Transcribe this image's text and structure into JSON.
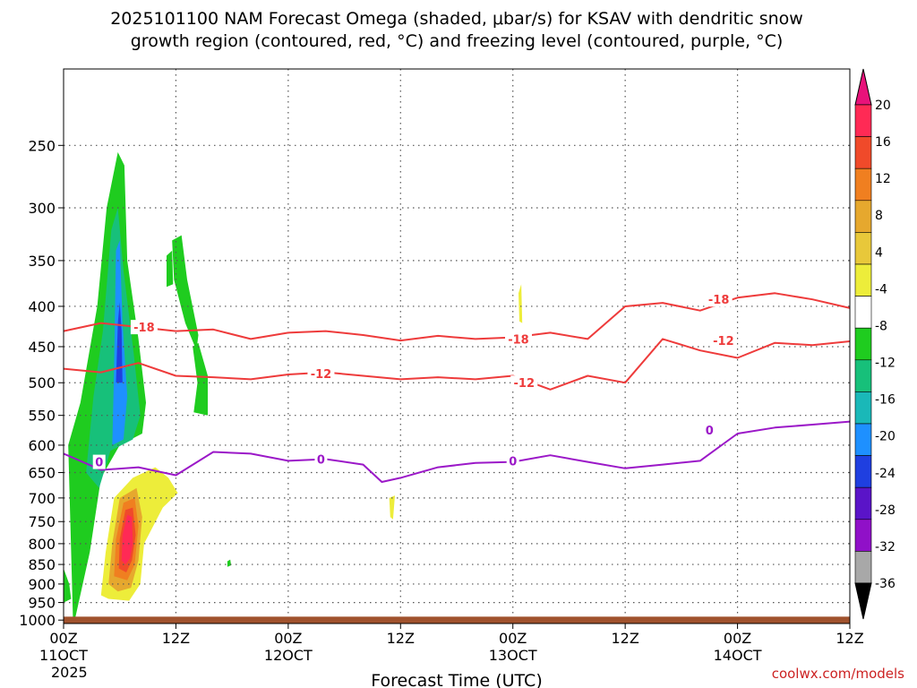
{
  "chart_data": {
    "type": "heatmap",
    "title_lines": [
      "2025101100 NAM Forecast Omega (shaded, μbar/s) for KSAV with dendritic snow",
      "growth region (contoured, red, °C) and freezing level (contoured, purple, °C)"
    ],
    "xlabel": "Forecast Time (UTC)",
    "ylabel": "",
    "x_ticks": [
      {
        "hour": 0,
        "l1": "00Z",
        "l2": "11OCT",
        "l3": "2025"
      },
      {
        "hour": 12,
        "l1": "12Z",
        "l2": "",
        "l3": ""
      },
      {
        "hour": 24,
        "l1": "00Z",
        "l2": "12OCT",
        "l3": ""
      },
      {
        "hour": 36,
        "l1": "12Z",
        "l2": "",
        "l3": ""
      },
      {
        "hour": 48,
        "l1": "00Z",
        "l2": "13OCT",
        "l3": ""
      },
      {
        "hour": 60,
        "l1": "12Z",
        "l2": "",
        "l3": ""
      },
      {
        "hour": 72,
        "l1": "00Z",
        "l2": "14OCT",
        "l3": ""
      },
      {
        "hour": 84,
        "l1": "12Z",
        "l2": "",
        "l3": ""
      }
    ],
    "xlim_hours": [
      0,
      84
    ],
    "y_ticks": [
      250,
      300,
      350,
      400,
      450,
      500,
      550,
      600,
      650,
      700,
      750,
      800,
      850,
      900,
      950,
      1000
    ],
    "ylim_hpa": [
      200,
      1010
    ],
    "y_log": true,
    "grid": true,
    "colorbar": {
      "labels": [
        "20",
        "16",
        "12",
        "8",
        "4",
        "-4",
        "-8",
        "-12",
        "-16",
        "-20",
        "-24",
        "-28",
        "-32",
        "-36"
      ],
      "colors": [
        "#ff2a55",
        "#f04a2a",
        "#f07f20",
        "#e6a82e",
        "#e8c83a",
        "#eded3a",
        "#ffffff",
        "#1fcc1f",
        "#17c07a",
        "#1ab8b8",
        "#1e90ff",
        "#1f3fe0",
        "#5a14c8",
        "#9010c8",
        "#a8a8a8"
      ],
      "top_arrow_color": "#e8127a",
      "bottom_arrow_color": "#000000"
    },
    "contours": [
      {
        "name": "-18",
        "color": "#ee3b3b",
        "x": [
          0,
          4,
          8,
          12,
          16,
          20,
          24,
          28,
          32,
          36,
          40,
          44,
          48,
          52,
          56,
          60,
          64,
          68,
          72,
          76,
          80,
          84
        ],
        "y": [
          430,
          420,
          425,
          430,
          428,
          440,
          432,
          430,
          435,
          442,
          436,
          440,
          438,
          432,
          440,
          400,
          396,
          405,
          390,
          385,
          392,
          402
        ],
        "labels": [
          {
            "x": 8.6,
            "y": 425
          },
          {
            "x": 48.6,
            "y": 440
          },
          {
            "x": 70,
            "y": 392
          }
        ]
      },
      {
        "name": "-12",
        "color": "#ee3b3b",
        "x": [
          0,
          4,
          8,
          12,
          16,
          20,
          24,
          28,
          32,
          36,
          40,
          44,
          48,
          52,
          56,
          60,
          64,
          68,
          72,
          76,
          80,
          84
        ],
        "y": [
          480,
          485,
          472,
          490,
          492,
          495,
          488,
          485,
          490,
          495,
          492,
          495,
          490,
          510,
          490,
          500,
          440,
          455,
          465,
          445,
          448,
          443
        ],
        "labels": [
          {
            "x": 27.5,
            "y": 487
          },
          {
            "x": 49.2,
            "y": 500
          },
          {
            "x": 70.5,
            "y": 442
          }
        ]
      },
      {
        "name": "0",
        "color": "#9b18c8",
        "x": [
          0,
          4,
          8,
          12,
          16,
          20,
          24,
          28,
          32,
          34,
          36,
          40,
          44,
          48,
          52,
          56,
          60,
          64,
          68,
          72,
          76,
          80,
          84
        ],
        "y": [
          615,
          645,
          640,
          655,
          612,
          615,
          628,
          625,
          635,
          668,
          660,
          640,
          632,
          630,
          618,
          630,
          642,
          635,
          628,
          580,
          570,
          565,
          560
        ],
        "labels": [
          {
            "x": 3.8,
            "y": 630
          },
          {
            "x": 27.5,
            "y": 625
          },
          {
            "x": 48,
            "y": 628
          },
          {
            "x": 69,
            "y": 574
          }
        ]
      }
    ],
    "omega_regions": [
      {
        "value": -6,
        "color": "#1fcc1f",
        "points": [
          [
            1.0,
            1000
          ],
          [
            0.5,
            600
          ],
          [
            1.8,
            530
          ],
          [
            3.6,
            400
          ],
          [
            4.6,
            300
          ],
          [
            5.8,
            255
          ],
          [
            6.5,
            265
          ],
          [
            6.8,
            350
          ],
          [
            8.0,
            440
          ],
          [
            8.8,
            530
          ],
          [
            8.4,
            580
          ],
          [
            6.0,
            600
          ],
          [
            4.0,
            660
          ],
          [
            2.8,
            820
          ],
          [
            1.2,
            1000
          ]
        ]
      },
      {
        "value": -10,
        "color": "#17c07a",
        "points": [
          [
            2.4,
            650
          ],
          [
            3.2,
            520
          ],
          [
            4.2,
            430
          ],
          [
            5.1,
            320
          ],
          [
            5.8,
            300
          ],
          [
            6.4,
            360
          ],
          [
            7.5,
            460
          ],
          [
            8.2,
            550
          ],
          [
            7.4,
            590
          ],
          [
            5.0,
            610
          ],
          [
            3.8,
            680
          ]
        ]
      },
      {
        "value": -16,
        "color": "#1e90ff",
        "points": [
          [
            5.2,
            600
          ],
          [
            5.4,
            480
          ],
          [
            5.6,
            340
          ],
          [
            6.0,
            330
          ],
          [
            6.3,
            420
          ],
          [
            6.8,
            520
          ],
          [
            6.4,
            590
          ]
        ]
      },
      {
        "value": -22,
        "color": "#1f3fe0",
        "points": [
          [
            5.6,
            500
          ],
          [
            5.8,
            420
          ],
          [
            6.0,
            395
          ],
          [
            6.2,
            430
          ],
          [
            6.3,
            500
          ]
        ]
      },
      {
        "value": -6,
        "color": "#1fcc1f",
        "points": [
          [
            11.6,
            330
          ],
          [
            12.6,
            325
          ],
          [
            13.2,
            370
          ],
          [
            14.4,
            435
          ],
          [
            14.2,
            455
          ],
          [
            13.0,
            420
          ],
          [
            11.8,
            370
          ]
        ]
      },
      {
        "value": -6,
        "color": "#1fcc1f",
        "points": [
          [
            11.0,
            345
          ],
          [
            11.6,
            340
          ],
          [
            11.7,
            375
          ],
          [
            11.0,
            378
          ]
        ]
      },
      {
        "value": -6,
        "color": "#1fcc1f",
        "points": [
          [
            13.8,
            450
          ],
          [
            14.4,
            445
          ],
          [
            15.4,
            490
          ],
          [
            15.4,
            550
          ],
          [
            13.9,
            545
          ],
          [
            14.3,
            500
          ]
        ]
      },
      {
        "value": -6,
        "color": "#1fcc1f",
        "points": [
          [
            17.5,
            842
          ],
          [
            17.8,
            838
          ],
          [
            17.9,
            852
          ],
          [
            17.5,
            856
          ]
        ]
      },
      {
        "value": -6,
        "color": "#1fcc1f",
        "points": [
          [
            0,
            860
          ],
          [
            0.6,
            900
          ],
          [
            0.8,
            940
          ],
          [
            0,
            950
          ]
        ]
      },
      {
        "value": 6,
        "color": "#eded3a",
        "points": [
          [
            4.0,
            930
          ],
          [
            4.5,
            820
          ],
          [
            5.4,
            700
          ],
          [
            7.4,
            660
          ],
          [
            9.8,
            640
          ],
          [
            11.2,
            660
          ],
          [
            12.2,
            690
          ],
          [
            10.6,
            720
          ],
          [
            8.6,
            800
          ],
          [
            8.2,
            900
          ],
          [
            7.0,
            945
          ],
          [
            4.8,
            940
          ]
        ]
      },
      {
        "value": 10,
        "color": "#e6a82e",
        "points": [
          [
            4.8,
            900
          ],
          [
            5.2,
            800
          ],
          [
            6.0,
            700
          ],
          [
            7.8,
            680
          ],
          [
            8.4,
            740
          ],
          [
            8.0,
            840
          ],
          [
            7.2,
            910
          ],
          [
            5.8,
            920
          ]
        ]
      },
      {
        "value": 14,
        "color": "#f07f20",
        "points": [
          [
            5.4,
            880
          ],
          [
            5.6,
            790
          ],
          [
            6.4,
            710
          ],
          [
            7.6,
            700
          ],
          [
            8.0,
            760
          ],
          [
            7.6,
            850
          ],
          [
            6.8,
            890
          ]
        ]
      },
      {
        "value": 18,
        "color": "#f04a2a",
        "points": [
          [
            5.9,
            860
          ],
          [
            6.0,
            790
          ],
          [
            6.6,
            725
          ],
          [
            7.4,
            720
          ],
          [
            7.7,
            780
          ],
          [
            7.3,
            840
          ],
          [
            6.7,
            870
          ]
        ]
      },
      {
        "value": 22,
        "color": "#ff2a55",
        "points": [
          [
            6.2,
            840
          ],
          [
            6.3,
            780
          ],
          [
            6.8,
            735
          ],
          [
            7.3,
            740
          ],
          [
            7.4,
            800
          ],
          [
            7.1,
            835
          ],
          [
            6.6,
            850
          ]
        ]
      },
      {
        "value": 6,
        "color": "#eded3a",
        "points": [
          [
            34.8,
            700
          ],
          [
            35.4,
            695
          ],
          [
            35.2,
            745
          ],
          [
            34.9,
            740
          ]
        ]
      },
      {
        "value": 6,
        "color": "#eded3a",
        "points": [
          [
            48.6,
            385
          ],
          [
            48.9,
            375
          ],
          [
            49.0,
            420
          ],
          [
            48.7,
            418
          ]
        ]
      }
    ],
    "ground": {
      "color": "#a0522d",
      "from_hpa": 990,
      "to_hpa": 1010
    },
    "credit": "coolwx.com/models"
  }
}
